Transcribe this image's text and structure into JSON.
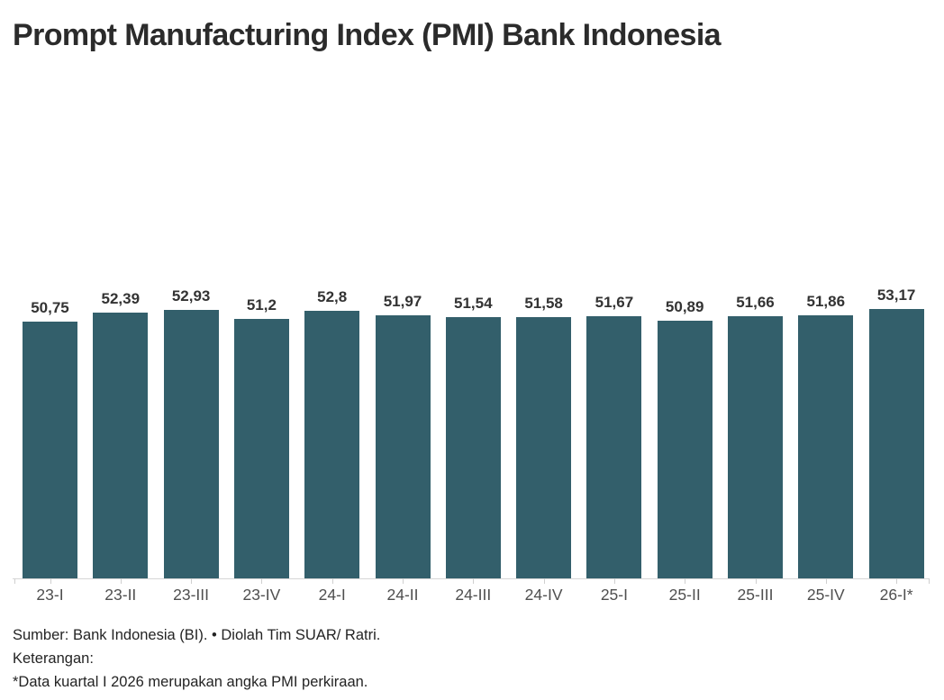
{
  "title": "Prompt Manufacturing Index (PMI) Bank Indonesia",
  "chart_data": {
    "type": "bar",
    "title": "Prompt Manufacturing Index (PMI) Bank Indonesia",
    "categories": [
      "23-I",
      "23-II",
      "23-III",
      "23-IV",
      "24-I",
      "24-II",
      "24-III",
      "24-IV",
      "25-I",
      "25-II",
      "25-III",
      "25-IV",
      "26-I*"
    ],
    "values": [
      50.75,
      52.39,
      52.93,
      51.2,
      52.8,
      51.97,
      51.54,
      51.58,
      51.67,
      50.89,
      51.66,
      51.86,
      53.17
    ],
    "value_labels": [
      "50,75",
      "52,39",
      "52,93",
      "51,2",
      "52,8",
      "51,97",
      "51,54",
      "51,58",
      "51,67",
      "50,89",
      "51,66",
      "51,86",
      "53,17"
    ],
    "xlabel": "",
    "ylabel": "",
    "ylim": [
      0,
      96
    ],
    "grid": false,
    "legend_position": "none",
    "bar_color": "#335f6b",
    "decimal_separator": ","
  },
  "footer": {
    "source": "Sumber: Bank Indonesia (BI). • Diolah Tim SUAR/ Ratri.",
    "note_heading": "Keterangan:",
    "note": "*Data kuartal I 2026 merupakan angka PMI perkiraan."
  },
  "colors": {
    "bar": "#335f6b",
    "title_text": "#2b2b2b",
    "value_label": "#333333",
    "axis_label": "#4f4f4f",
    "axis_line": "#d6d6d6",
    "background": "#ffffff"
  }
}
